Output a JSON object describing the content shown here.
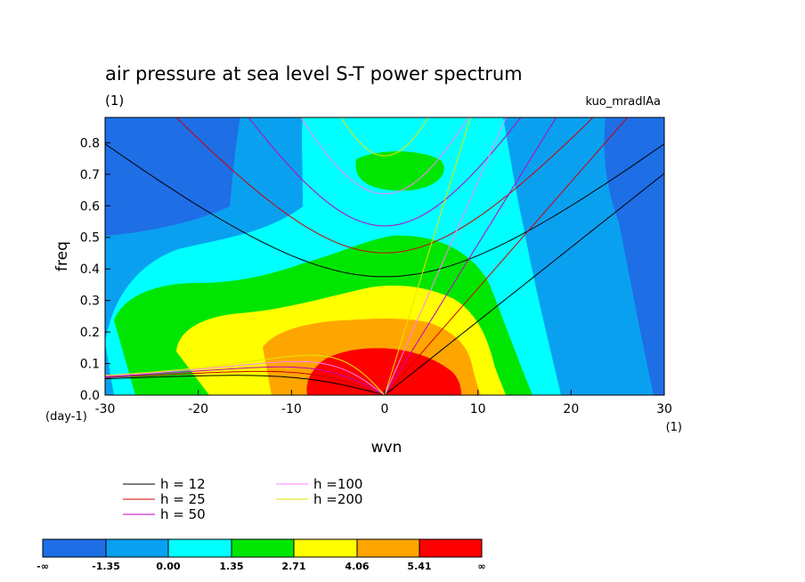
{
  "chart_data": {
    "type": "contour",
    "title": "air pressure at sea level S-T power spectrum",
    "subtitle_left": "(1)",
    "subtitle_right": "kuo_mradlAa",
    "xlabel": "wvn",
    "ylabel": "freq",
    "x_unit": "(1)",
    "y_unit": "(day-1)",
    "xlim": [
      -30,
      30
    ],
    "ylim": [
      0,
      0.88
    ],
    "x_ticks": [
      -30,
      -20,
      -10,
      0,
      10,
      20,
      30
    ],
    "x_tick_labels": [
      "-30",
      "-20",
      "-10",
      "0",
      "10",
      "20",
      "30"
    ],
    "y_ticks": [
      0.0,
      0.1,
      0.2,
      0.3,
      0.4,
      0.5,
      0.6,
      0.7,
      0.8
    ],
    "y_tick_labels": [
      "0.0",
      "0.1",
      "0.2",
      "0.3",
      "0.4",
      "0.5",
      "0.6",
      "0.7",
      "0.8"
    ],
    "colorbar": {
      "levels": [
        "-∞",
        "-1.35",
        "0.00",
        "1.35",
        "2.71",
        "4.06",
        "5.41",
        "∞"
      ],
      "colors": [
        "#1e6ee6",
        "#0aa0f0",
        "#00ffff",
        "#00e600",
        "#ffff00",
        "#ffa500",
        "#ff0000"
      ]
    },
    "dispersion_legend": [
      {
        "label": "h = 12",
        "color": "#000000"
      },
      {
        "label": "h = 25",
        "color": "#cc0000"
      },
      {
        "label": "h = 50",
        "color": "#c000c0"
      },
      {
        "label": "h =100",
        "color": "#ff80ff"
      },
      {
        "label": "h =200",
        "color": "#e6e600"
      }
    ],
    "equivalent_depths": [
      12,
      25,
      50,
      100,
      200
    ]
  }
}
